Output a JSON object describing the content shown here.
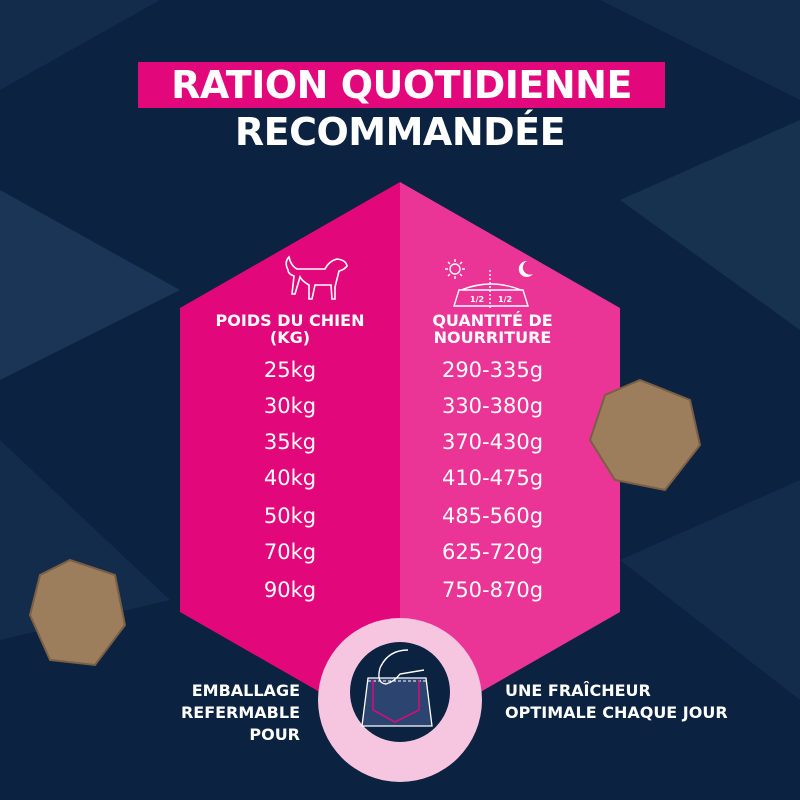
{
  "title": {
    "line1": "RATION QUOTIDIENNE",
    "line2": "RECOMMANDÉE"
  },
  "colors": {
    "background": "#0b2241",
    "magenta": "#e2087c",
    "pink": "#ea3596",
    "light_pink": "#f6c6e0"
  },
  "table": {
    "headers": {
      "weight": "POIDS DU CHIEN (KG)",
      "quantity": "QUANTITÉ DE NOURRITURE"
    },
    "bowl_labels": [
      "1/2",
      "1/2"
    ],
    "rows": [
      {
        "weight": "25kg",
        "quantity": "290-335g"
      },
      {
        "weight": "30kg",
        "quantity": "330-380g"
      },
      {
        "weight": "35kg",
        "quantity": "370-430g"
      },
      {
        "weight": "40kg",
        "quantity": "410-475g"
      },
      {
        "weight": "50kg",
        "quantity": "485-560g"
      },
      {
        "weight": "70kg",
        "quantity": "625-720g"
      },
      {
        "weight": "90kg",
        "quantity": "750-870g"
      }
    ]
  },
  "footer": {
    "left": "EMBALLAGE REFERMABLE POUR",
    "right": "UNE FRAÎCHEUR OPTIMALE CHAQUE JOUR"
  },
  "icons": [
    "dog-icon",
    "sun-icon",
    "moon-icon",
    "food-bowl-icon",
    "resealable-bag-icon",
    "kibble-image"
  ]
}
